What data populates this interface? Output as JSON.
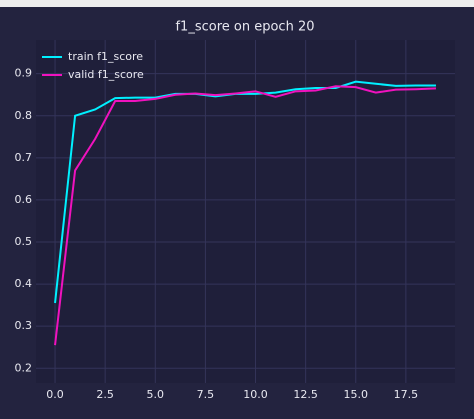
{
  "chart_data": {
    "type": "line",
    "title": "f1_score on epoch 20",
    "x": [
      0,
      1,
      2,
      3,
      4,
      5,
      6,
      7,
      8,
      9,
      10,
      11,
      12,
      13,
      14,
      15,
      16,
      17,
      18,
      19
    ],
    "series": [
      {
        "name": "train f1_score",
        "color": "#00f0ff",
        "values": [
          0.355,
          0.8,
          0.815,
          0.842,
          0.843,
          0.843,
          0.852,
          0.852,
          0.846,
          0.852,
          0.852,
          0.855,
          0.863,
          0.866,
          0.866,
          0.881,
          0.876,
          0.871,
          0.872,
          0.872
        ]
      },
      {
        "name": "valid f1_score",
        "color": "#f012be",
        "values": [
          0.255,
          0.67,
          0.745,
          0.835,
          0.835,
          0.84,
          0.85,
          0.853,
          0.849,
          0.853,
          0.858,
          0.845,
          0.858,
          0.86,
          0.87,
          0.868,
          0.855,
          0.862,
          0.863,
          0.865
        ]
      }
    ],
    "xlim": [
      -0.95,
      19.95
    ],
    "xticks": [
      {
        "value": 0,
        "label": "0.0"
      },
      2.5,
      {
        "value": 5,
        "label": "5.0"
      },
      7.5,
      {
        "value": 10,
        "label": "10.0"
      },
      12.5,
      {
        "value": 15,
        "label": "15.0"
      },
      17.5
    ],
    "ylim": [
      0.165,
      0.98
    ],
    "yticks": [
      0.2,
      0.3,
      0.4,
      0.5,
      0.6,
      0.7,
      0.8,
      0.9
    ],
    "grid": true,
    "legend": "upper left"
  }
}
